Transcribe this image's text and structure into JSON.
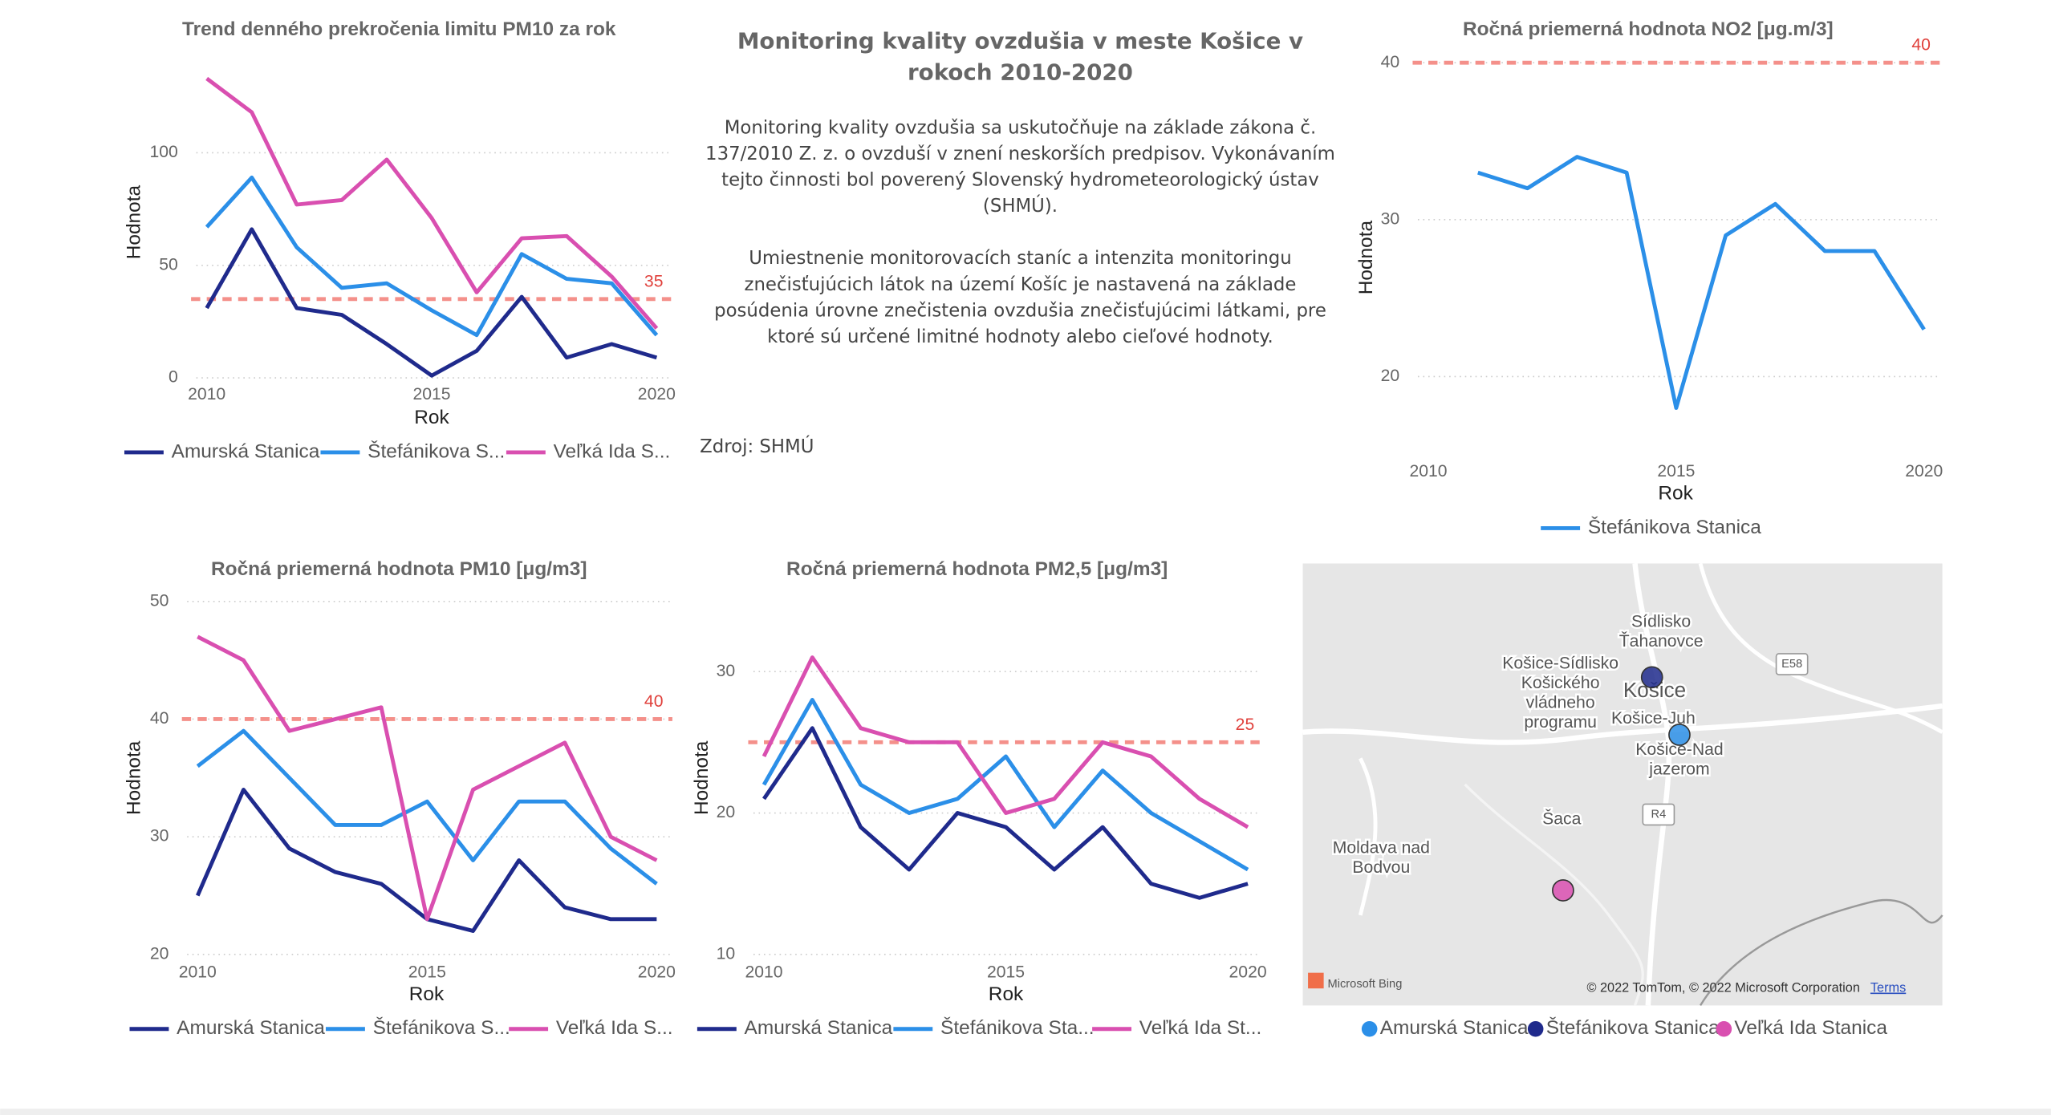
{
  "chart_data": [
    {
      "type": "line",
      "title": "Trend denného prekročenia limitu PM10 za rok",
      "x_label": "Rok",
      "y_label": "Hodnota",
      "x": [
        2010,
        2011,
        2012,
        2013,
        2014,
        2015,
        2016,
        2017,
        2018,
        2019,
        2020
      ],
      "xlim": [
        2010,
        2020
      ],
      "xticks": [
        2010,
        2015,
        2020
      ],
      "ylim": [
        0,
        140
      ],
      "yticks": [
        0,
        50,
        100
      ],
      "grid": true,
      "reference": {
        "value": 35,
        "color": "#f4908a",
        "label_color": "#e0413c"
      },
      "series": [
        {
          "name": "Amurská Stanica",
          "color": "#1f2a8c",
          "values": [
            31,
            66,
            31,
            28,
            15,
            1,
            12,
            36,
            9,
            15,
            9
          ]
        },
        {
          "name": "Štefánikova S...",
          "color": "#2b8fe8",
          "values": [
            67,
            89,
            58,
            40,
            42,
            30,
            19,
            55,
            44,
            42,
            19
          ]
        },
        {
          "name": "Veľká Ida S...",
          "color": "#d94fb0",
          "values": [
            133,
            118,
            77,
            79,
            97,
            71,
            38,
            62,
            63,
            45,
            22
          ]
        }
      ]
    },
    {
      "type": "line",
      "title": "Ročná priemerná hodnota NO2 [μg.m/3]",
      "x_label": "Rok",
      "y_label": "Hodnota",
      "x": [
        2010,
        2011,
        2012,
        2013,
        2014,
        2015,
        2016,
        2017,
        2018,
        2019,
        2020
      ],
      "xlim": [
        2010,
        2020
      ],
      "xticks": [
        2010,
        2015,
        2020
      ],
      "ylim": [
        17,
        41
      ],
      "yticks": [
        20,
        30,
        40
      ],
      "grid": true,
      "reference": {
        "value": 40,
        "color": "#f4908a",
        "label_color": "#e0413c"
      },
      "series": [
        {
          "name": "Štefánikova Stanica",
          "color": "#2b8fe8",
          "values": [
            null,
            33,
            32,
            34,
            33,
            18,
            29,
            31,
            28,
            28,
            23
          ]
        }
      ]
    },
    {
      "type": "line",
      "title": "Ročná priemerná hodnota PM10 [μg/m3]",
      "x_label": "Rok",
      "y_label": "Hodnota",
      "x": [
        2010,
        2011,
        2012,
        2013,
        2014,
        2015,
        2016,
        2017,
        2018,
        2019,
        2020
      ],
      "xlim": [
        2010,
        2020
      ],
      "xticks": [
        2010,
        2015,
        2020
      ],
      "ylim": [
        20,
        50
      ],
      "yticks": [
        20,
        30,
        40,
        50
      ],
      "grid": true,
      "reference": {
        "value": 40,
        "color": "#f4908a",
        "label_color": "#e0413c"
      },
      "series": [
        {
          "name": "Amurská Stanica",
          "color": "#1f2a8c",
          "values": [
            25,
            34,
            29,
            27,
            26,
            23,
            22,
            28,
            24,
            23,
            23
          ]
        },
        {
          "name": "Štefánikova S...",
          "color": "#2b8fe8",
          "values": [
            36,
            39,
            35,
            31,
            31,
            33,
            28,
            33,
            33,
            29,
            26
          ]
        },
        {
          "name": "Veľká Ida S...",
          "color": "#d94fb0",
          "values": [
            47,
            45,
            39,
            40,
            41,
            23,
            34,
            36,
            38,
            30,
            28
          ]
        }
      ]
    },
    {
      "type": "line",
      "title": "Ročná priemerná hodnota PM2,5 [μg/m3]",
      "x_label": "Rok",
      "y_label": "Hodnota",
      "x": [
        2010,
        2011,
        2012,
        2013,
        2014,
        2015,
        2016,
        2017,
        2018,
        2019,
        2020
      ],
      "xlim": [
        2010,
        2020
      ],
      "xticks": [
        2010,
        2015,
        2020
      ],
      "ylim": [
        10,
        32
      ],
      "yticks": [
        10,
        20,
        30
      ],
      "grid": true,
      "reference": {
        "value": 25,
        "color": "#f4908a",
        "label_color": "#e0413c"
      },
      "series": [
        {
          "name": "Amurská Stanica",
          "color": "#1f2a8c",
          "values": [
            21,
            26,
            19,
            16,
            20,
            19,
            16,
            19,
            15,
            14,
            15
          ]
        },
        {
          "name": "Štefánikova Sta...",
          "color": "#2b8fe8",
          "values": [
            22,
            28,
            22,
            20,
            21,
            24,
            19,
            23,
            20,
            18,
            16
          ]
        },
        {
          "name": "Veľká Ida St...",
          "color": "#d94fb0",
          "values": [
            24,
            31,
            26,
            25,
            25,
            20,
            21,
            25,
            24,
            21,
            19
          ]
        }
      ]
    }
  ],
  "text_panel": {
    "title": "Monitoring kvality ovzdušia v meste Košice v rokoch 2010-2020",
    "paragraphs": [
      "Monitoring kvality ovzdušia sa uskutočňuje na základe zákona č. 137/2010 Z. z. o ovzduší v znení  neskorších predpisov. Vykonávaním tejto činnosti bol poverený Slovenský hydrometeorologický ústav (SHMÚ).",
      "Umiestnenie monitorovacích staníc a intenzita monitoringu znečisťujúcich látok na území Košíc je nastavená na základe posúdenia úrovne znečistenia ovzdušia znečisťujúcimi látkami, pre ktoré sú určené limitné hodnoty alebo cieľové hodnoty."
    ],
    "source": "Zdroj: SHMÚ"
  },
  "map": {
    "labels": [
      [
        "Sídlisko",
        "Ťahanovce"
      ],
      [
        "Košice-Sídlisko",
        "Košického",
        "vládneho",
        "programu"
      ],
      [
        "Košice"
      ],
      [
        "Košice-Juh"
      ],
      [
        "Košice-Nad",
        "jazerom"
      ],
      [
        "Šaca"
      ],
      [
        "Moldava nad",
        "Bodvou"
      ],
      [
        "E58"
      ],
      [
        "R4"
      ]
    ],
    "attribution": "© 2022 TomTom, © 2022 Microsoft Corporation",
    "terms": "Terms",
    "provider": "Microsoft Bing",
    "legend": [
      {
        "name": "Amurská Stanica",
        "color": "#2b8fe8"
      },
      {
        "name": "Štefánikova Stanica",
        "color": "#1f2a8c"
      },
      {
        "name": "Veľká Ida Stanica",
        "color": "#d94fb0"
      }
    ]
  }
}
